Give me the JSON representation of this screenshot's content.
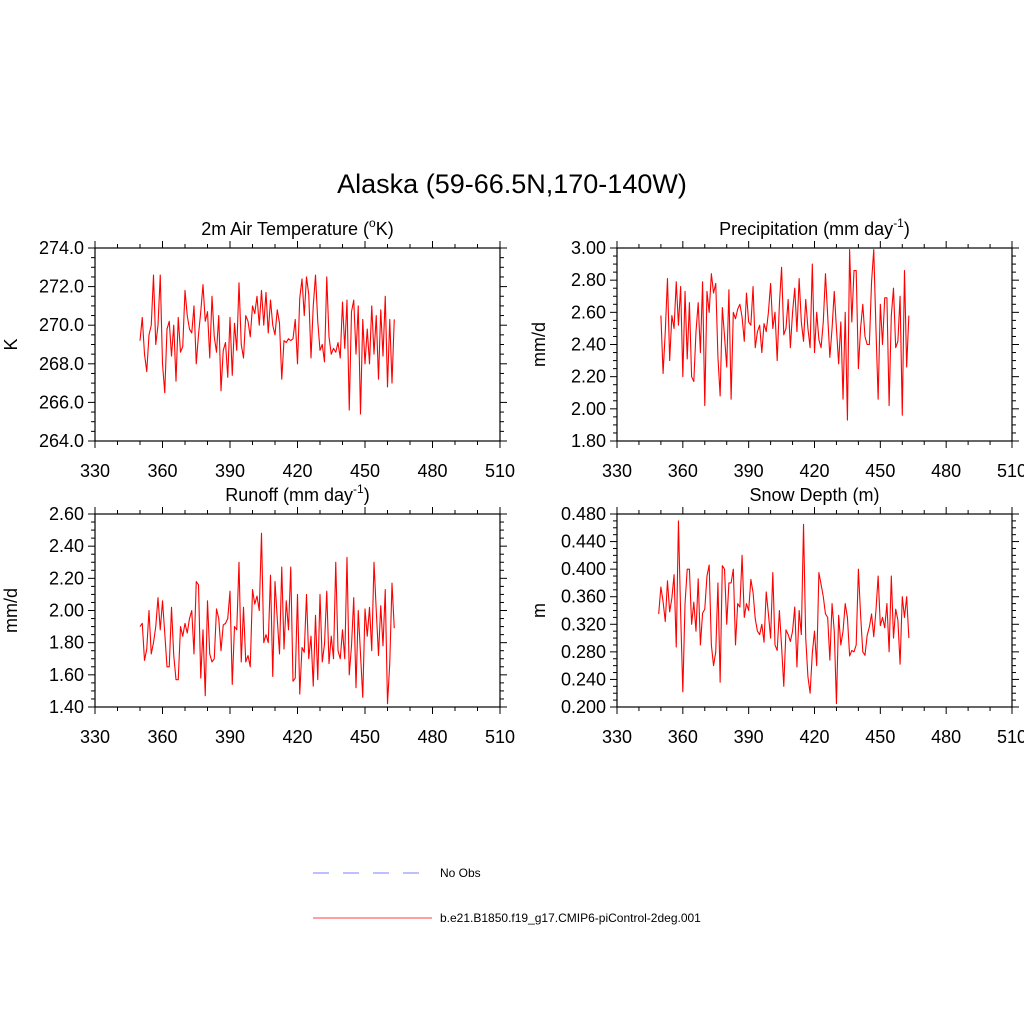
{
  "figure": {
    "title": "Alaska (59-66.5N,170-140W)"
  },
  "legend": {
    "entries": [
      {
        "label": "No Obs",
        "color": "#9999ff",
        "style": "dashed"
      },
      {
        "label": "b.e21.B1850.f19_g17.CMIP6-piControl-2deg.001",
        "color": "#ff0000",
        "style": "solid"
      }
    ]
  },
  "chart_data": [
    {
      "type": "line",
      "title": "2m Air Temperature (°K)",
      "title_parts": [
        "2m Air Temperature (",
        "o",
        "K)"
      ],
      "ylabel": "K",
      "xlim": [
        330,
        510
      ],
      "ylim": [
        264,
        274
      ],
      "xticks": [
        330,
        360,
        390,
        420,
        450,
        480,
        510
      ],
      "xticklabels": [
        "330",
        "360",
        "390",
        "420",
        "450",
        "480",
        "510"
      ],
      "yticks": [
        264,
        266,
        268,
        270,
        272,
        274
      ],
      "yticklabels": [
        "264.0",
        "266.0",
        "268.0",
        "270.0",
        "272.0",
        "274.0"
      ],
      "series": [
        {
          "color": "#ff0000",
          "x_start": 350,
          "x_step": 1,
          "values": [
            269.2,
            270.4,
            268.5,
            267.6,
            269.5,
            270.0,
            272.6,
            269.0,
            270.0,
            272.6,
            268.0,
            266.5,
            269.8,
            270.2,
            268.4,
            270.0,
            267.1,
            270.4,
            268.6,
            268.9,
            271.8,
            270.5,
            269.8,
            269.6,
            271.0,
            268.0,
            269.5,
            270.7,
            272.1,
            270.2,
            270.7,
            268.3,
            271.5,
            269.4,
            268.6,
            270.5,
            266.6,
            268.7,
            269.1,
            267.3,
            270.4,
            267.4,
            270.1,
            268.7,
            272.2,
            269.0,
            268.3,
            270.5,
            270.2,
            269.4,
            271.0,
            270.6,
            271.5,
            270.0,
            271.8,
            270.0,
            271.7,
            269.6,
            271.3,
            270.0,
            269.5,
            270.8,
            270.1,
            267.2,
            269.2,
            269.1,
            269.3,
            269.2,
            269.3,
            270.3,
            268.0,
            271.4,
            272.4,
            270.5,
            272.5,
            271.6,
            268.3,
            271.0,
            272.6,
            270.2,
            268.7,
            269.0,
            268.1,
            272.5,
            269.4,
            268.5,
            268.8,
            268.6,
            269.1,
            268.3,
            271.2,
            268.8,
            271.3,
            265.6,
            270.7,
            271.3,
            268.5,
            271.0,
            265.4,
            270.3,
            268.0,
            269.8,
            268.0,
            271.0,
            268.5,
            270.5,
            267.2,
            270.8,
            268.4,
            271.5,
            266.8,
            270.3,
            267.0,
            270.3
          ]
        }
      ]
    },
    {
      "type": "line",
      "title": "Precipitation (mm day⁻¹)",
      "title_parts": [
        "Precipitation (mm day",
        "-1",
        ")"
      ],
      "ylabel": "mm/d",
      "xlim": [
        330,
        510
      ],
      "ylim": [
        1.8,
        3.0
      ],
      "xticks": [
        330,
        360,
        390,
        420,
        450,
        480,
        510
      ],
      "xticklabels": [
        "330",
        "360",
        "390",
        "420",
        "450",
        "480",
        "510"
      ],
      "yticks": [
        1.8,
        2.0,
        2.2,
        2.4,
        2.6,
        2.8,
        3.0
      ],
      "yticklabels": [
        "1.80",
        "2.00",
        "2.20",
        "2.40",
        "2.60",
        "2.80",
        "3.00"
      ],
      "series": [
        {
          "color": "#ff0000",
          "x_start": 350,
          "x_step": 1,
          "values": [
            2.58,
            2.22,
            2.48,
            2.81,
            2.3,
            2.58,
            2.5,
            2.79,
            2.52,
            2.76,
            2.2,
            2.73,
            2.31,
            2.66,
            2.2,
            2.17,
            2.48,
            2.66,
            2.35,
            2.79,
            2.02,
            2.73,
            2.6,
            2.84,
            2.72,
            2.78,
            2.32,
            2.08,
            2.63,
            2.45,
            2.26,
            2.74,
            2.06,
            2.6,
            2.56,
            2.62,
            2.65,
            2.57,
            2.42,
            2.72,
            2.54,
            2.52,
            2.76,
            2.38,
            2.48,
            2.52,
            2.35,
            2.53,
            2.48,
            2.6,
            2.78,
            2.5,
            2.6,
            2.3,
            2.65,
            2.88,
            2.46,
            2.5,
            2.68,
            2.38,
            2.6,
            2.75,
            2.48,
            2.81,
            2.54,
            2.42,
            2.68,
            2.5,
            2.38,
            2.9,
            2.35,
            2.6,
            2.43,
            2.38,
            2.54,
            2.84,
            2.58,
            2.32,
            2.5,
            2.73,
            2.5,
            2.28,
            2.54,
            2.06,
            2.6,
            1.93,
            2.99,
            2.54,
            2.86,
            2.86,
            2.25,
            2.5,
            2.65,
            2.45,
            2.4,
            2.4,
            2.79,
            2.99,
            2.5,
            2.06,
            2.65,
            2.4,
            2.69,
            2.69,
            2.02,
            2.58,
            2.75,
            2.38,
            2.42,
            2.7,
            1.96,
            2.86,
            2.26,
            2.58
          ]
        }
      ]
    },
    {
      "type": "line",
      "title": "Runoff (mm day⁻¹)",
      "title_parts": [
        "Runoff (mm day",
        "-1",
        ")"
      ],
      "ylabel": "mm/d",
      "xlim": [
        330,
        510
      ],
      "ylim": [
        1.4,
        2.6
      ],
      "xticks": [
        330,
        360,
        390,
        420,
        450,
        480,
        510
      ],
      "xticklabels": [
        "330",
        "360",
        "390",
        "420",
        "450",
        "480",
        "510"
      ],
      "yticks": [
        1.4,
        1.6,
        1.8,
        2.0,
        2.2,
        2.4,
        2.6
      ],
      "yticklabels": [
        "1.40",
        "1.60",
        "1.80",
        "2.00",
        "2.20",
        "2.40",
        "2.60"
      ],
      "series": [
        {
          "color": "#ff0000",
          "x_start": 350,
          "x_step": 1,
          "values": [
            1.9,
            1.92,
            1.69,
            1.76,
            2.0,
            1.73,
            1.8,
            1.9,
            2.08,
            1.88,
            2.06,
            1.86,
            1.65,
            1.65,
            2.02,
            1.72,
            1.57,
            1.57,
            1.9,
            1.84,
            1.92,
            1.86,
            1.95,
            2.0,
            1.73,
            2.18,
            2.16,
            1.58,
            1.88,
            1.47,
            2.06,
            1.73,
            1.68,
            1.7,
            2.01,
            1.95,
            1.75,
            1.91,
            1.92,
            1.95,
            2.12,
            1.54,
            1.9,
            1.88,
            2.3,
            1.68,
            2.02,
            1.68,
            1.72,
            1.65,
            2.13,
            2.04,
            2.09,
            2.0,
            2.48,
            1.8,
            1.85,
            1.8,
            2.22,
            1.59,
            2.18,
            1.95,
            1.73,
            2.27,
            1.76,
            2.06,
            1.88,
            2.27,
            1.56,
            1.58,
            2.1,
            1.48,
            1.77,
            1.74,
            2.1,
            1.7,
            1.84,
            1.53,
            1.97,
            1.57,
            2.1,
            1.68,
            1.79,
            2.12,
            1.67,
            1.84,
            1.7,
            2.3,
            1.75,
            1.7,
            1.88,
            1.7,
            2.33,
            1.6,
            1.78,
            2.08,
            1.52,
            2.0,
            1.73,
            1.46,
            2.01,
            1.84,
            2.02,
            1.75,
            2.3,
            2.0,
            1.72,
            2.03,
            1.78,
            2.13,
            1.42,
            1.67,
            2.17,
            1.89
          ]
        }
      ]
    },
    {
      "type": "line",
      "title": "Snow Depth (m)",
      "ylabel": "m",
      "xlim": [
        330,
        510
      ],
      "ylim": [
        0.2,
        0.48
      ],
      "xticks": [
        330,
        360,
        390,
        420,
        450,
        480,
        510
      ],
      "xticklabels": [
        "330",
        "360",
        "390",
        "420",
        "450",
        "480",
        "510"
      ],
      "yticks": [
        0.2,
        0.24,
        0.28,
        0.32,
        0.36,
        0.4,
        0.44,
        0.48
      ],
      "yticklabels": [
        "0.200",
        "0.240",
        "0.280",
        "0.320",
        "0.360",
        "0.400",
        "0.440",
        "0.480"
      ],
      "series": [
        {
          "color": "#ff0000",
          "x_start": 349,
          "x_step": 1,
          "values": [
            0.335,
            0.374,
            0.353,
            0.324,
            0.383,
            0.338,
            0.358,
            0.392,
            0.287,
            0.47,
            0.336,
            0.222,
            0.35,
            0.4,
            0.4,
            0.32,
            0.352,
            0.31,
            0.386,
            0.29,
            0.336,
            0.342,
            0.39,
            0.406,
            0.29,
            0.26,
            0.28,
            0.38,
            0.236,
            0.405,
            0.4,
            0.32,
            0.38,
            0.38,
            0.4,
            0.29,
            0.35,
            0.345,
            0.42,
            0.33,
            0.35,
            0.34,
            0.385,
            0.366,
            0.328,
            0.31,
            0.305,
            0.32,
            0.294,
            0.367,
            0.335,
            0.3,
            0.395,
            0.29,
            0.282,
            0.34,
            0.288,
            0.23,
            0.312,
            0.305,
            0.295,
            0.31,
            0.345,
            0.258,
            0.34,
            0.305,
            0.465,
            0.3,
            0.244,
            0.22,
            0.278,
            0.31,
            0.26,
            0.395,
            0.378,
            0.36,
            0.335,
            0.33,
            0.268,
            0.35,
            0.31,
            0.205,
            0.333,
            0.29,
            0.31,
            0.35,
            0.33,
            0.274,
            0.282,
            0.28,
            0.29,
            0.4,
            0.334,
            0.28,
            0.275,
            0.304,
            0.316,
            0.335,
            0.302,
            0.34,
            0.39,
            0.318,
            0.33,
            0.315,
            0.35,
            0.28,
            0.39,
            0.3,
            0.342,
            0.326,
            0.262,
            0.36,
            0.33,
            0.36,
            0.3
          ]
        }
      ]
    }
  ]
}
